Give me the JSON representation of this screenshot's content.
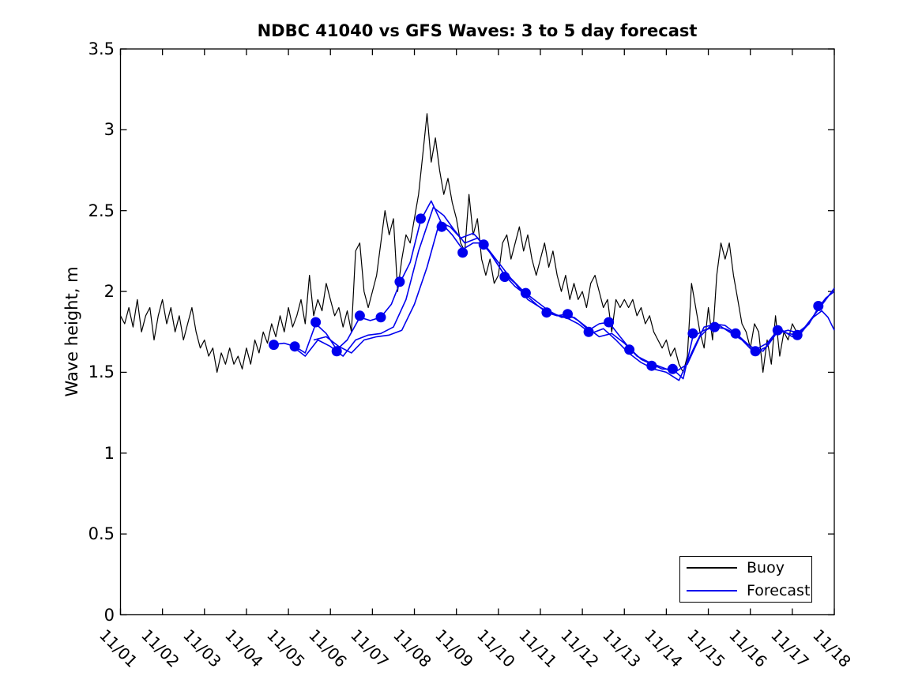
{
  "chart_data": {
    "type": "line",
    "title": "NDBC 41040 vs GFS Waves: 3 to 5 day forecast",
    "xlabel": "",
    "ylabel": "Wave height, m",
    "ylim": [
      0,
      3.5
    ],
    "yticks": [
      0,
      0.5,
      1,
      1.5,
      2,
      2.5,
      3,
      3.5
    ],
    "ytick_labels": [
      "0",
      "0.5",
      "1",
      "1.5",
      "2",
      "2.5",
      "3",
      "3.5"
    ],
    "xlim_days": [
      0,
      17
    ],
    "xtick_days": [
      0,
      1,
      2,
      3,
      4,
      5,
      6,
      7,
      8,
      9,
      10,
      11,
      12,
      13,
      14,
      15,
      16,
      17
    ],
    "xtick_labels": [
      "11/01",
      "11/02",
      "11/03",
      "11/04",
      "11/05",
      "11/06",
      "11/07",
      "11/08",
      "11/09",
      "11/10",
      "11/11",
      "11/12",
      "11/13",
      "11/14",
      "11/15",
      "11/16",
      "11/17",
      "11/18"
    ],
    "grid": false,
    "legend": {
      "position": "lower-right",
      "entries": [
        {
          "label": "Buoy",
          "color": "#000000"
        },
        {
          "label": "Forecast",
          "color": "#0000EE"
        }
      ]
    },
    "series": [
      {
        "name": "Buoy",
        "type": "line",
        "color": "#000000",
        "line_width": 1.2,
        "start_day": 0,
        "step_days": 0.1,
        "values": [
          1.85,
          1.8,
          1.9,
          1.78,
          1.95,
          1.75,
          1.85,
          1.9,
          1.7,
          1.85,
          1.95,
          1.8,
          1.9,
          1.75,
          1.85,
          1.7,
          1.8,
          1.9,
          1.75,
          1.65,
          1.7,
          1.6,
          1.65,
          1.5,
          1.62,
          1.55,
          1.65,
          1.55,
          1.6,
          1.52,
          1.65,
          1.55,
          1.7,
          1.62,
          1.75,
          1.68,
          1.8,
          1.72,
          1.85,
          1.75,
          1.9,
          1.78,
          1.85,
          1.95,
          1.8,
          2.1,
          1.85,
          1.95,
          1.88,
          2.05,
          1.95,
          1.85,
          1.9,
          1.78,
          1.88,
          1.75,
          2.25,
          2.3,
          2.0,
          1.9,
          2.0,
          2.1,
          2.3,
          2.5,
          2.35,
          2.45,
          2.0,
          2.2,
          2.35,
          2.3,
          2.45,
          2.6,
          2.85,
          3.1,
          2.8,
          2.95,
          2.75,
          2.6,
          2.7,
          2.55,
          2.45,
          2.3,
          2.25,
          2.6,
          2.35,
          2.45,
          2.2,
          2.1,
          2.2,
          2.05,
          2.1,
          2.3,
          2.35,
          2.2,
          2.3,
          2.4,
          2.25,
          2.35,
          2.2,
          2.1,
          2.2,
          2.3,
          2.15,
          2.25,
          2.1,
          2.0,
          2.1,
          1.95,
          2.05,
          1.95,
          2.0,
          1.9,
          2.05,
          2.1,
          2.0,
          1.9,
          1.95,
          1.75,
          1.95,
          1.9,
          1.95,
          1.9,
          1.95,
          1.85,
          1.9,
          1.8,
          1.85,
          1.75,
          1.7,
          1.65,
          1.7,
          1.6,
          1.65,
          1.55,
          1.5,
          1.6,
          2.05,
          1.9,
          1.75,
          1.65,
          1.9,
          1.7,
          2.1,
          2.3,
          2.2,
          2.3,
          2.1,
          1.95,
          1.8,
          1.75,
          1.65,
          1.8,
          1.75,
          1.5,
          1.7,
          1.55,
          1.85,
          1.6,
          1.75,
          1.7,
          1.8,
          1.75
        ]
      },
      {
        "name": "Forecast markers",
        "type": "scatter",
        "color": "#0000EE",
        "marker": "filled-circle",
        "marker_radius_px": 6.5,
        "points": [
          [
            3.65,
            1.67
          ],
          [
            4.15,
            1.66
          ],
          [
            4.65,
            1.81
          ],
          [
            5.15,
            1.63
          ],
          [
            5.7,
            1.85
          ],
          [
            6.2,
            1.84
          ],
          [
            6.65,
            2.06
          ],
          [
            7.15,
            2.45
          ],
          [
            7.65,
            2.4
          ],
          [
            8.15,
            2.24
          ],
          [
            8.65,
            2.29
          ],
          [
            9.15,
            2.09
          ],
          [
            9.65,
            1.99
          ],
          [
            10.15,
            1.87
          ],
          [
            10.65,
            1.86
          ],
          [
            11.15,
            1.75
          ],
          [
            11.63,
            1.81
          ],
          [
            12.12,
            1.64
          ],
          [
            12.65,
            1.54
          ],
          [
            13.15,
            1.52
          ],
          [
            13.63,
            1.74
          ],
          [
            14.15,
            1.78
          ],
          [
            14.65,
            1.74
          ],
          [
            15.12,
            1.63
          ],
          [
            15.65,
            1.76
          ],
          [
            16.12,
            1.73
          ],
          [
            16.62,
            1.91
          ]
        ]
      },
      {
        "name": "Forecast run 1",
        "type": "line",
        "color": "#0000EE",
        "line_width": 1.6,
        "points": [
          [
            3.6,
            1.67
          ],
          [
            3.9,
            1.68
          ],
          [
            4.15,
            1.66
          ],
          [
            4.4,
            1.62
          ],
          [
            4.65,
            1.8
          ],
          [
            4.9,
            1.74
          ],
          [
            5.15,
            1.64
          ],
          [
            5.4,
            1.7
          ],
          [
            5.7,
            1.84
          ],
          [
            5.95,
            1.82
          ],
          [
            6.2,
            1.84
          ],
          [
            6.45,
            1.92
          ],
          [
            6.65,
            2.05
          ],
          [
            6.9,
            2.18
          ],
          [
            7.15,
            2.44
          ],
          [
            7.4,
            2.56
          ],
          [
            7.65,
            2.42
          ],
          [
            7.9,
            2.35
          ],
          [
            8.15,
            2.26
          ],
          [
            8.4,
            2.3
          ],
          [
            8.65,
            2.3
          ],
          [
            8.9,
            2.2
          ],
          [
            9.15,
            2.1
          ],
          [
            9.4,
            2.03
          ],
          [
            9.65,
            1.98
          ],
          [
            9.9,
            1.92
          ],
          [
            10.15,
            1.87
          ],
          [
            10.4,
            1.85
          ],
          [
            10.65,
            1.86
          ],
          [
            10.9,
            1.82
          ],
          [
            11.15,
            1.76
          ],
          [
            11.4,
            1.8
          ],
          [
            11.63,
            1.81
          ],
          [
            11.9,
            1.72
          ],
          [
            12.12,
            1.65
          ],
          [
            12.4,
            1.58
          ],
          [
            12.65,
            1.55
          ],
          [
            12.9,
            1.52
          ],
          [
            13.15,
            1.52
          ],
          [
            13.4,
            1.46
          ],
          [
            13.63,
            1.72
          ],
          [
            13.9,
            1.76
          ],
          [
            14.15,
            1.78
          ],
          [
            14.4,
            1.77
          ],
          [
            14.65,
            1.74
          ],
          [
            14.9,
            1.68
          ],
          [
            15.12,
            1.64
          ],
          [
            15.4,
            1.68
          ],
          [
            15.65,
            1.76
          ],
          [
            15.9,
            1.74
          ],
          [
            16.12,
            1.73
          ],
          [
            16.4,
            1.8
          ],
          [
            16.62,
            1.9
          ],
          [
            16.8,
            1.96
          ],
          [
            17,
            2.0
          ]
        ]
      },
      {
        "name": "Forecast run 2",
        "type": "line",
        "color": "#0000EE",
        "line_width": 1.6,
        "points": [
          [
            4.1,
            1.66
          ],
          [
            4.4,
            1.6
          ],
          [
            4.7,
            1.7
          ],
          [
            5,
            1.66
          ],
          [
            5.3,
            1.6
          ],
          [
            5.6,
            1.7
          ],
          [
            5.9,
            1.73
          ],
          [
            6.2,
            1.74
          ],
          [
            6.5,
            1.78
          ],
          [
            6.8,
            1.95
          ],
          [
            7.1,
            2.25
          ],
          [
            7.45,
            2.52
          ],
          [
            7.7,
            2.47
          ],
          [
            7.95,
            2.38
          ],
          [
            8.2,
            2.3
          ],
          [
            8.5,
            2.33
          ],
          [
            8.8,
            2.24
          ],
          [
            9.1,
            2.12
          ],
          [
            9.4,
            2.05
          ],
          [
            9.7,
            1.95
          ],
          [
            10,
            1.9
          ],
          [
            10.3,
            1.86
          ],
          [
            10.6,
            1.84
          ],
          [
            10.9,
            1.8
          ],
          [
            11.2,
            1.74
          ],
          [
            11.5,
            1.77
          ],
          [
            11.8,
            1.7
          ],
          [
            12.1,
            1.62
          ],
          [
            12.4,
            1.56
          ],
          [
            12.7,
            1.52
          ],
          [
            13,
            1.5
          ],
          [
            13.3,
            1.45
          ],
          [
            13.6,
            1.62
          ],
          [
            13.9,
            1.78
          ],
          [
            14.2,
            1.8
          ],
          [
            14.5,
            1.75
          ],
          [
            14.8,
            1.7
          ],
          [
            15.1,
            1.62
          ],
          [
            15.4,
            1.66
          ],
          [
            15.7,
            1.77
          ],
          [
            16,
            1.72
          ],
          [
            16.3,
            1.78
          ],
          [
            16.6,
            1.88
          ],
          [
            17,
            2.02
          ]
        ]
      },
      {
        "name": "Forecast run 3",
        "type": "line",
        "color": "#0000EE",
        "line_width": 1.6,
        "points": [
          [
            4.6,
            1.7
          ],
          [
            4.9,
            1.72
          ],
          [
            5.2,
            1.66
          ],
          [
            5.5,
            1.62
          ],
          [
            5.8,
            1.7
          ],
          [
            6.1,
            1.72
          ],
          [
            6.4,
            1.73
          ],
          [
            6.7,
            1.76
          ],
          [
            7,
            1.92
          ],
          [
            7.3,
            2.15
          ],
          [
            7.6,
            2.43
          ],
          [
            7.85,
            2.4
          ],
          [
            8.1,
            2.33
          ],
          [
            8.4,
            2.36
          ],
          [
            8.7,
            2.28
          ],
          [
            9,
            2.18
          ],
          [
            9.3,
            2.08
          ],
          [
            9.6,
            2.0
          ],
          [
            9.9,
            1.94
          ],
          [
            10.2,
            1.88
          ],
          [
            10.5,
            1.84
          ],
          [
            10.8,
            1.84
          ],
          [
            11.1,
            1.78
          ],
          [
            11.4,
            1.72
          ],
          [
            11.7,
            1.74
          ],
          [
            12,
            1.68
          ],
          [
            12.3,
            1.6
          ],
          [
            12.6,
            1.56
          ],
          [
            12.9,
            1.53
          ],
          [
            13.2,
            1.5
          ],
          [
            13.5,
            1.55
          ],
          [
            13.8,
            1.72
          ],
          [
            14.1,
            1.8
          ],
          [
            14.4,
            1.79
          ],
          [
            14.7,
            1.73
          ],
          [
            15,
            1.66
          ],
          [
            15.3,
            1.63
          ],
          [
            15.6,
            1.74
          ],
          [
            15.9,
            1.76
          ],
          [
            16.2,
            1.74
          ],
          [
            16.5,
            1.84
          ],
          [
            16.7,
            1.88
          ],
          [
            16.85,
            1.84
          ],
          [
            17,
            1.76
          ]
        ]
      }
    ]
  }
}
